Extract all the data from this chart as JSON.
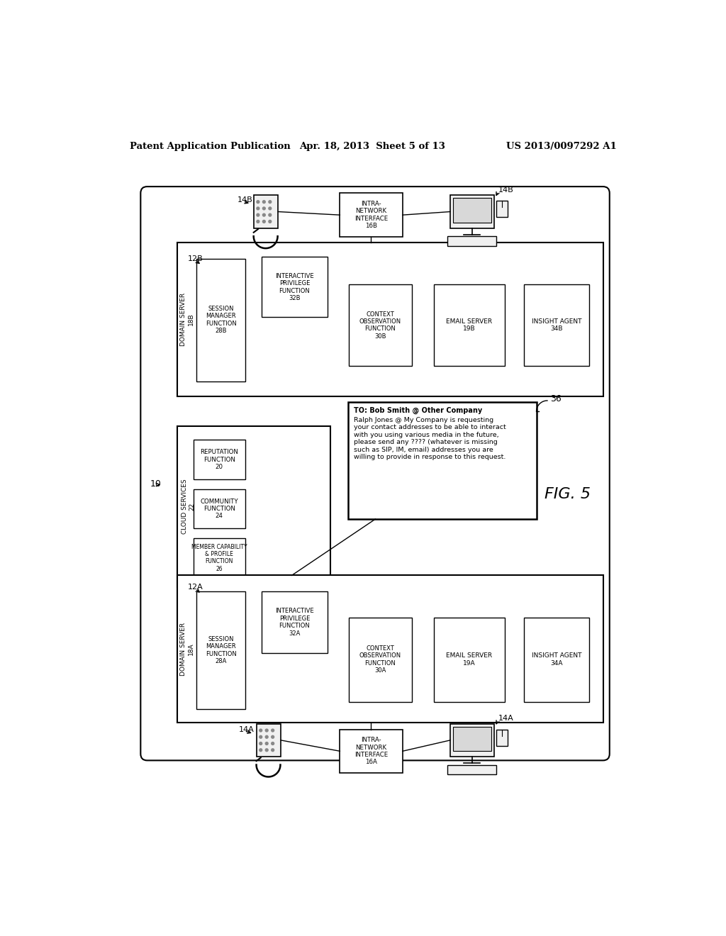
{
  "title_left": "Patent Application Publication",
  "title_center": "Apr. 18, 2013  Sheet 5 of 13",
  "title_right": "US 2013/0097292 A1",
  "fig_label": "FIG. 5",
  "background_color": "#ffffff"
}
